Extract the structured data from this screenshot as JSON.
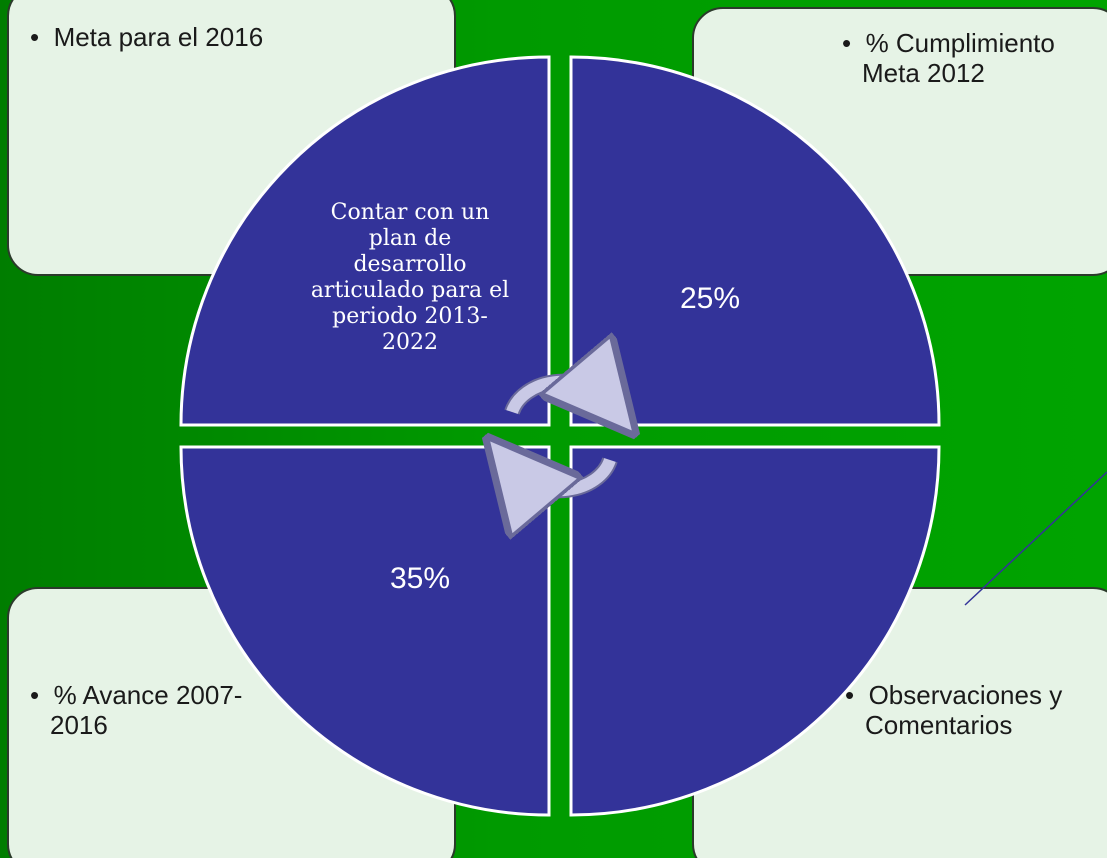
{
  "boxes": {
    "top_left": "Meta para el 2016",
    "top_right": "% Cumplimiento Meta 2012",
    "bottom_left": "% Avance 2007-2016",
    "bottom_right": "Observaciones y Comentarios"
  },
  "quadrants": {
    "top_left": "Contar con un plan de desarrollo articulado para el periodo 2013-2022",
    "top_right": "25%",
    "bottom_left": "35%"
  }
}
